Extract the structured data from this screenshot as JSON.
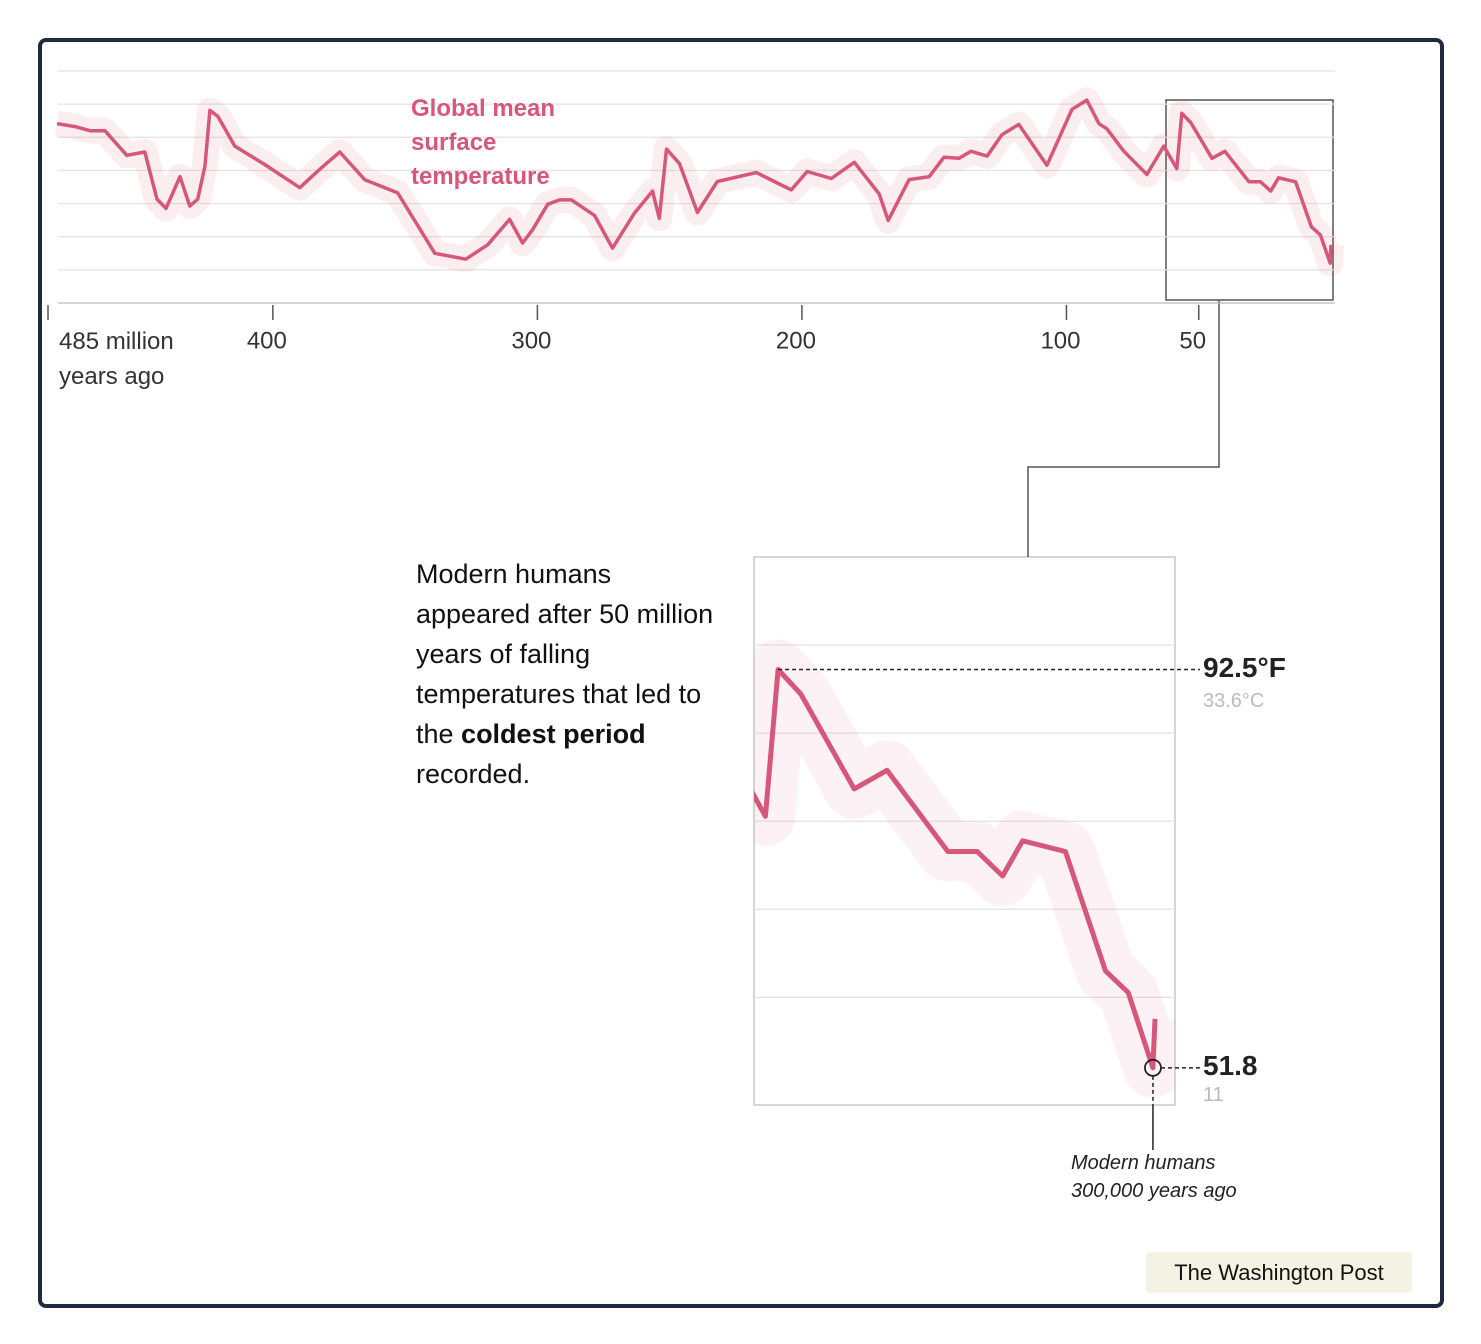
{
  "chart_data": {
    "type": "line",
    "x": [
      481.6,
      474.8,
      469.1,
      463.5,
      455.2,
      448.4,
      443.8,
      440.4,
      435.1,
      431.4,
      428.4,
      425.7,
      423.8,
      420.8,
      414.4,
      403.1,
      389.8,
      382.3,
      374.7,
      365.3,
      352.8,
      338.8,
      327.1,
      318.8,
      310.5,
      305.6,
      301.8,
      296.1,
      291.6,
      287.1,
      278.4,
      271.6,
      263.3,
      256.5,
      253.9,
      251.2,
      246.3,
      239.5,
      232,
      217.2,
      204,
      198,
      188.9,
      180.2,
      170.8,
      167.4,
      159.5,
      151.9,
      146.3,
      140.6,
      136.1,
      130,
      124.4,
      118,
      107.4,
      97.9,
      92.3,
      87.7,
      84.7,
      78.3,
      69.6,
      63.2,
      58.3,
      56.4,
      53,
      45,
      40.1,
      31,
      26.6,
      22.8,
      19.8,
      13.4,
      7.4,
      4,
      0.3,
      0
    ],
    "series": [
      {
        "name": "Global mean surface temperature",
        "color": "#d6577a",
        "values": [
          89.7,
          88.9,
          87.8,
          87.8,
          81.1,
          82,
          69.2,
          66.7,
          75.3,
          67.3,
          69.2,
          78.1,
          93.3,
          91.7,
          83.6,
          78.6,
          72.3,
          77.3,
          82,
          74.5,
          70.9,
          54.5,
          52.9,
          56.8,
          63.7,
          57.3,
          60.9,
          67.8,
          69,
          69,
          64.8,
          55.9,
          65.4,
          71.4,
          64,
          82.8,
          78.9,
          65.6,
          74,
          76.4,
          71.7,
          76.7,
          74.8,
          79.2,
          70.6,
          63.4,
          74.5,
          75.3,
          80.6,
          80.3,
          82.2,
          80.9,
          86.7,
          89.5,
          78.4,
          93.6,
          96.1,
          89.7,
          88.3,
          82.2,
          75.9,
          83.6,
          77.5,
          92.5,
          90,
          80.3,
          82.2,
          73.9,
          73.9,
          71.4,
          75,
          73.9,
          61.7,
          59.5,
          51.8,
          56.8
        ]
      }
    ],
    "xlim": [
      485,
      0
    ],
    "xticks": [
      {
        "value": 485,
        "label": "485 million years ago"
      },
      400,
      300,
      200,
      100,
      50
    ],
    "ylim": [
      41,
      104
    ],
    "yticks": [
      41,
      50,
      59,
      68,
      77,
      86,
      95,
      104
    ],
    "grid": true,
    "inset": {
      "xlim": [
        60,
        -3
      ],
      "ylim": [
        48,
        104
      ],
      "yticks": [
        59,
        68,
        77,
        86,
        95
      ]
    },
    "annotations": {
      "peak": {
        "x": 56.4,
        "value": 92.5,
        "label": "92.5°F",
        "celsius_label": "33.6°C"
      },
      "low": {
        "x": 0.3,
        "value": 51.8,
        "celsius": 11
      },
      "humans": [
        "Modern humans",
        "300,000 years ago"
      ],
      "text": [
        "Modern humans appeared after 50 million years of falling temperatures that led to the ",
        "coldest period",
        " recorded."
      ]
    }
  },
  "source": "The Washington Post"
}
